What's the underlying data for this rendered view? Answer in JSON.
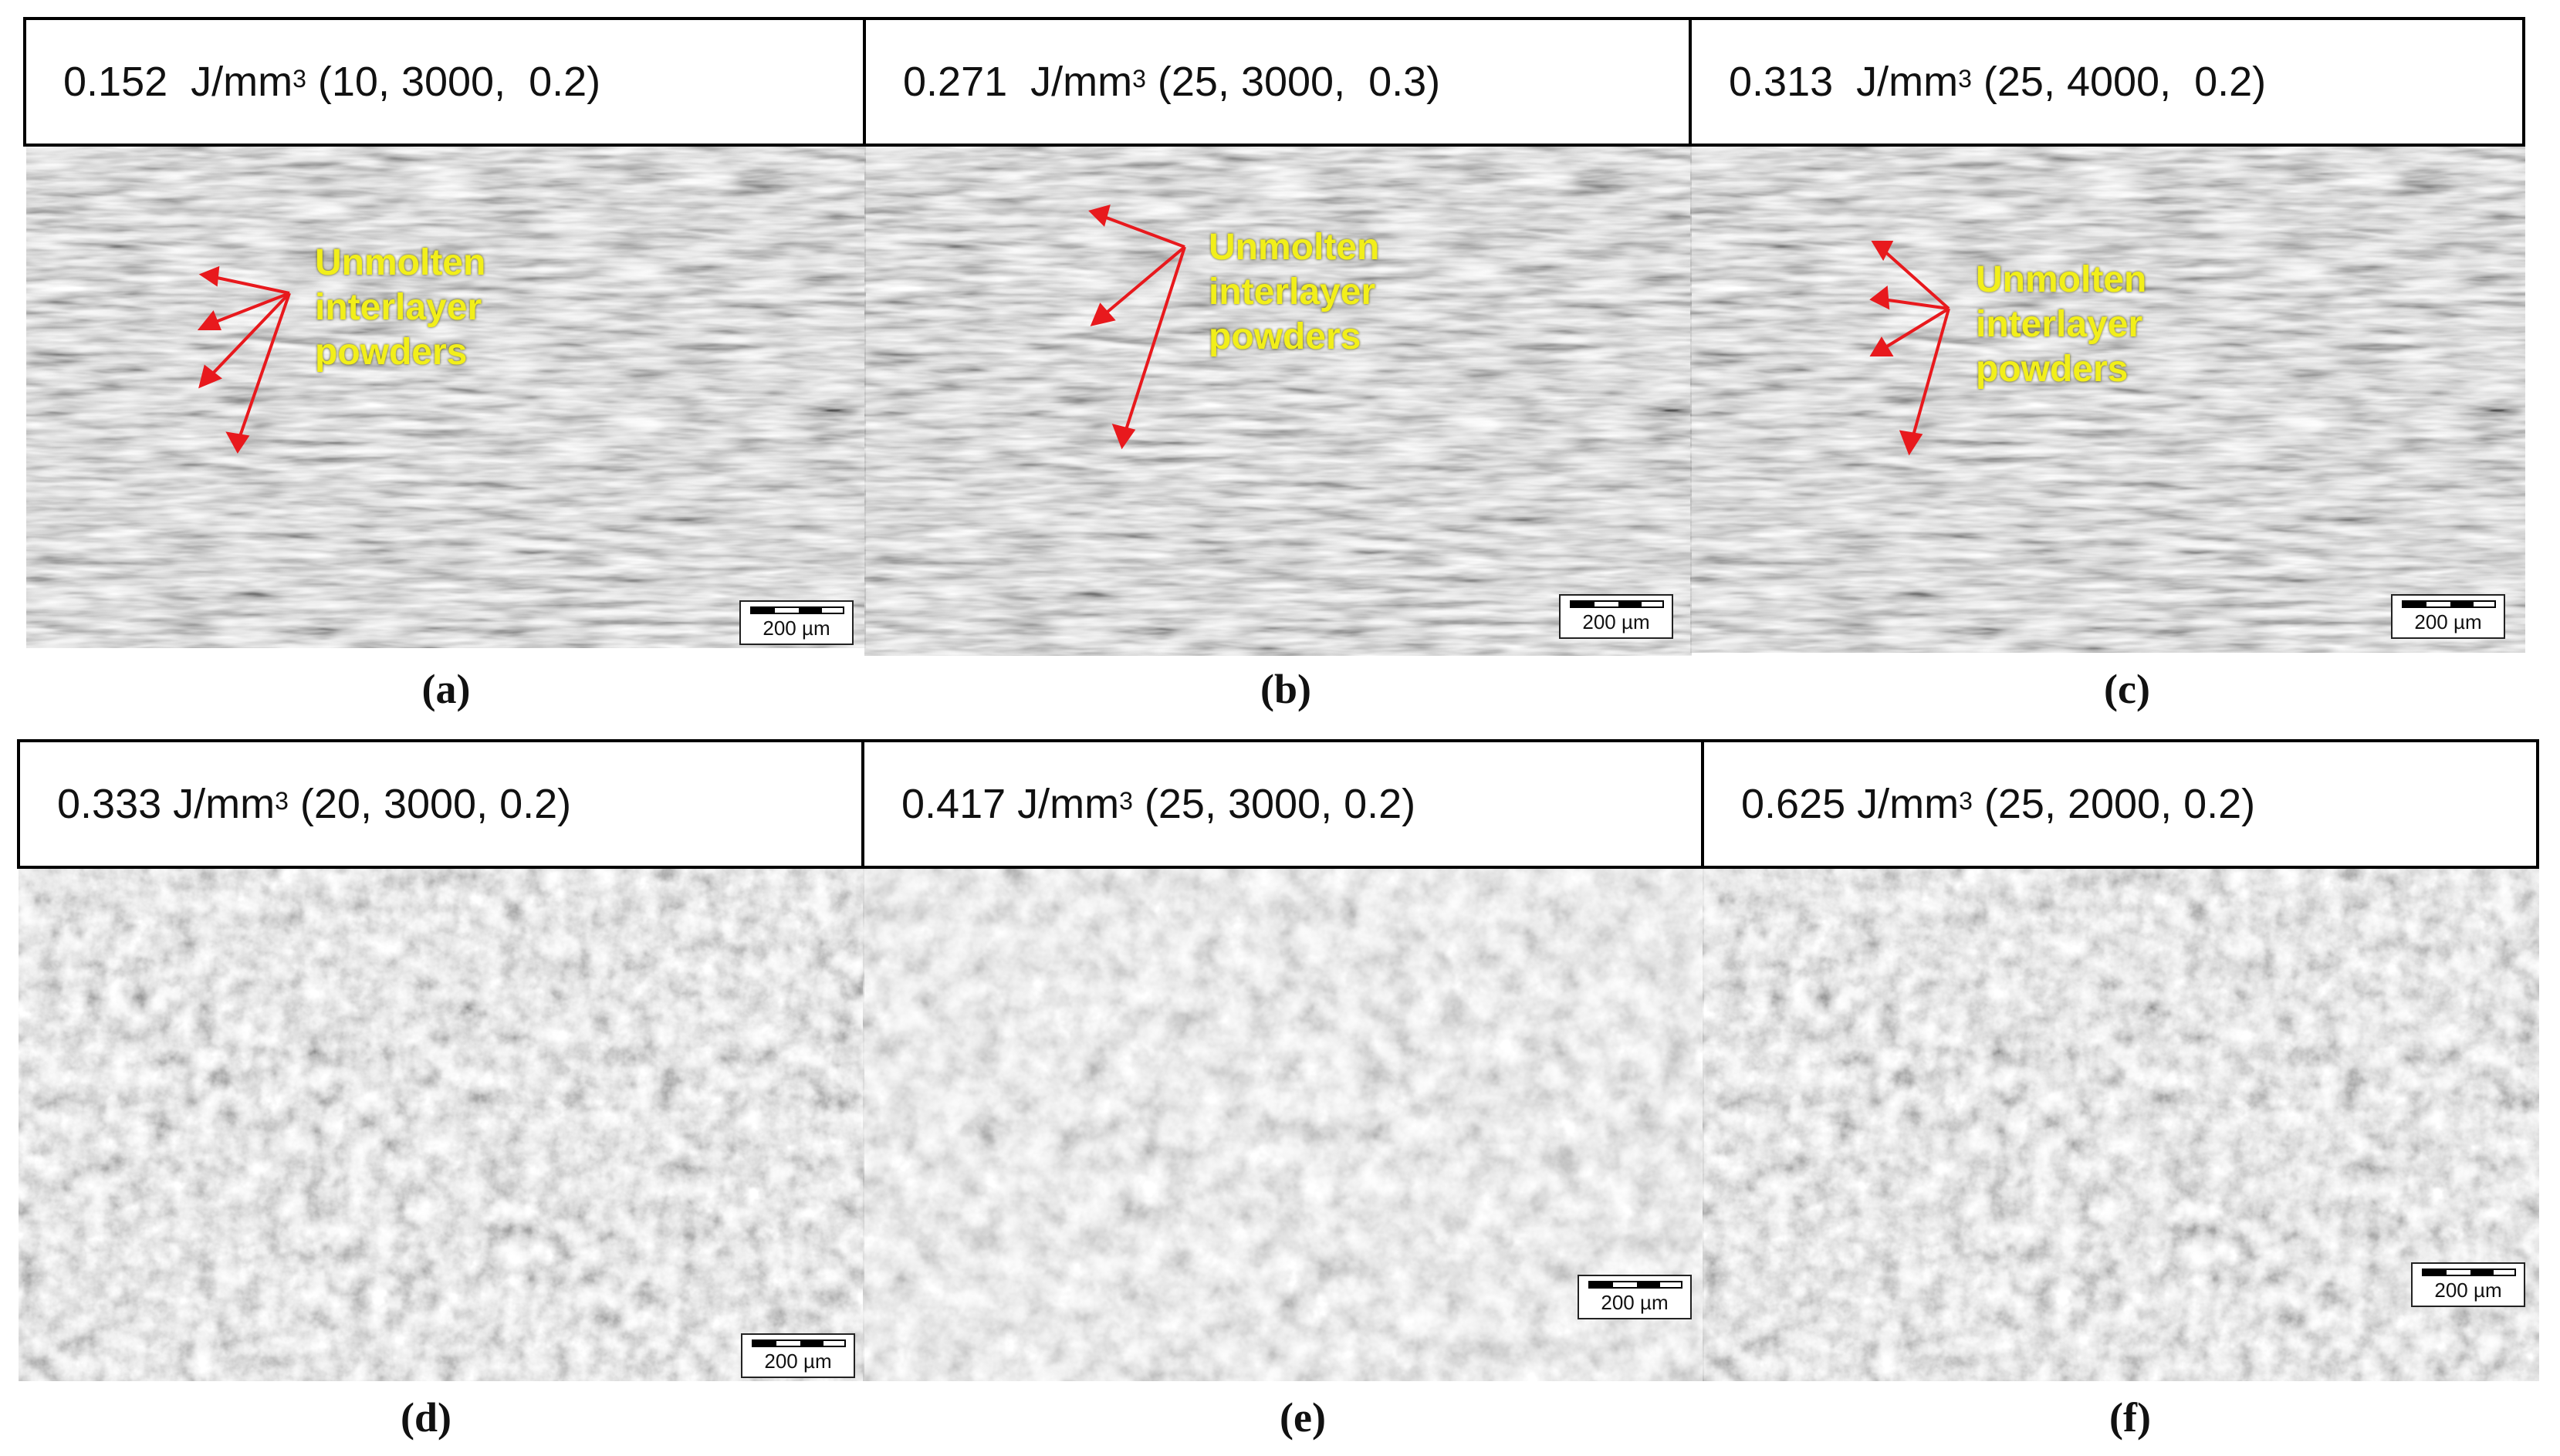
{
  "panels": [
    {
      "id": "a",
      "caption": "(a)",
      "energy": "0.152  J/mm",
      "exp": "3",
      "params": " (10, 3000,  0.2)",
      "scale": "200 µm",
      "annotation": [
        "Unmolten interlayer",
        "powders"
      ]
    },
    {
      "id": "b",
      "caption": "(b)",
      "energy": "0.271  J/mm",
      "exp": "3",
      "params": " (25, 3000,  0.3)",
      "scale": "200 µm",
      "annotation": [
        "Unmolten interlayer",
        "powders"
      ]
    },
    {
      "id": "c",
      "caption": "(c)",
      "energy": "0.313  J/mm",
      "exp": "3",
      "params": " (25, 4000,  0.2)",
      "scale": "200 µm",
      "annotation": [
        "Unmolten interlayer",
        "powders"
      ]
    },
    {
      "id": "d",
      "caption": "(d)",
      "energy": "0.333 J/mm",
      "exp": "3",
      "params": " (20, 3000, 0.2)",
      "scale": "200 µm"
    },
    {
      "id": "e",
      "caption": "(e)",
      "energy": "0.417 J/mm",
      "exp": "3",
      "params": " (25, 3000, 0.2)",
      "scale": "200 µm"
    },
    {
      "id": "f",
      "caption": "(f)",
      "energy": "0.625 J/mm",
      "exp": "3",
      "params": " (25, 2000, 0.2)",
      "scale": "200 µm"
    }
  ],
  "colors": {
    "annotation": "#f2ef1a",
    "arrow": "#e8191d"
  }
}
